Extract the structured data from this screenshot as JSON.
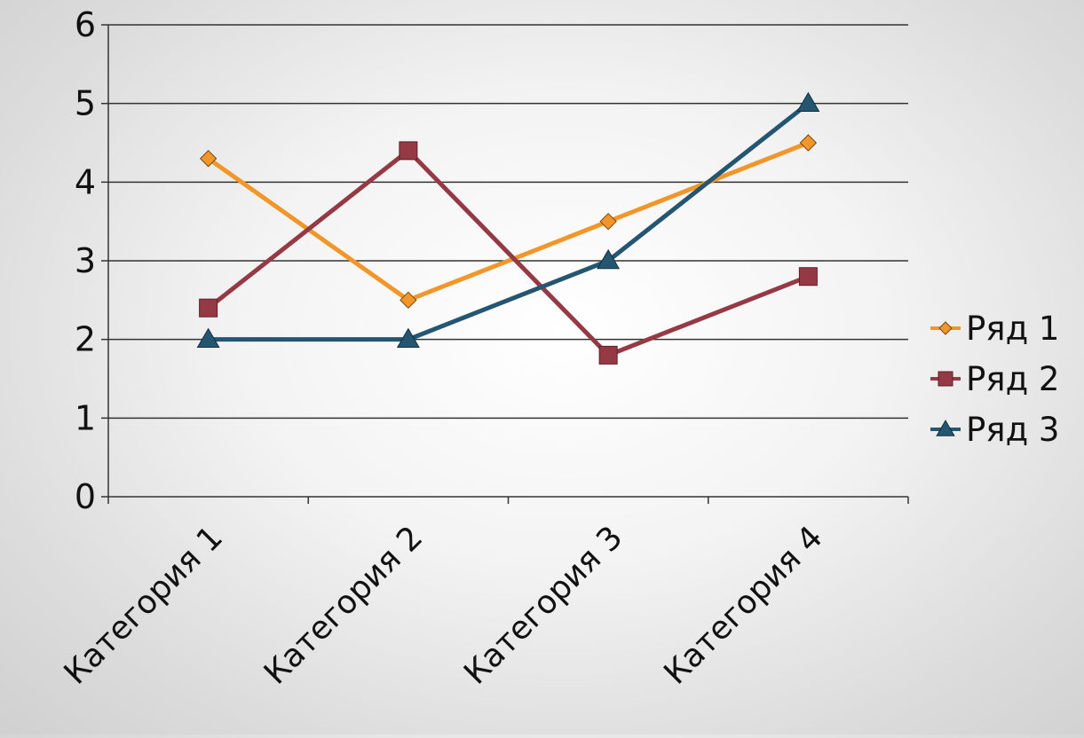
{
  "chart_data": {
    "type": "line",
    "categories": [
      "Категория 1",
      "Категория 2",
      "Категория 3",
      "Категория 4"
    ],
    "series": [
      {
        "name": "Ряд 1",
        "values": [
          4.3,
          2.5,
          3.5,
          4.5
        ],
        "color": "#f0962a",
        "marker": "diamond"
      },
      {
        "name": "Ряд 2",
        "values": [
          2.4,
          4.4,
          1.8,
          2.8
        ],
        "color": "#953a45",
        "marker": "square"
      },
      {
        "name": "Ряд 3",
        "values": [
          2,
          2,
          3,
          5
        ],
        "color": "#245671",
        "marker": "triangle"
      }
    ],
    "ylim": [
      0,
      6
    ],
    "yticks": [
      "0",
      "1",
      "2",
      "3",
      "4",
      "5",
      "6"
    ],
    "grid": true,
    "legend_position": "right",
    "title": "",
    "xlabel": "",
    "ylabel": ""
  }
}
